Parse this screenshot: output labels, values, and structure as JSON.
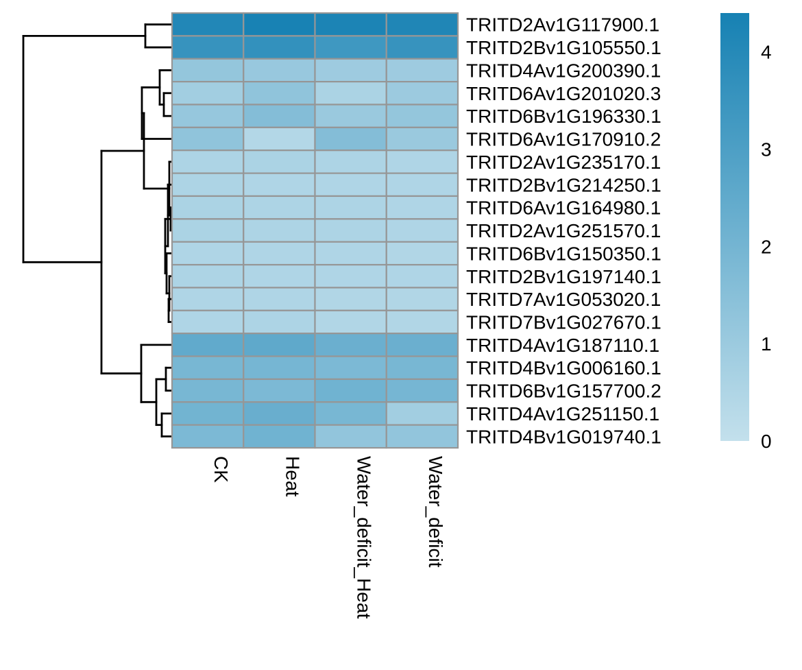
{
  "chart_data": {
    "type": "heatmap",
    "title": "",
    "xlabel": "",
    "ylabel": "",
    "columns": [
      "CK",
      "Heat",
      "Water_deficit_Heat",
      "Water_deficit"
    ],
    "rows": [
      "TRITD2Av1G117900.1",
      "TRITD2Bv1G105550.1",
      "TRITD4Av1G200390.1",
      "TRITD6Av1G201020.3",
      "TRITD6Bv1G196330.1",
      "TRITD6Av1G170910.2",
      "TRITD2Av1G235170.1",
      "TRITD2Bv1G214250.1",
      "TRITD6Av1G164980.1",
      "TRITD2Av1G251570.1",
      "TRITD6Bv1G150350.1",
      "TRITD2Bv1G197140.1",
      "TRITD7Av1G053020.1",
      "TRITD7Bv1G027670.1",
      "TRITD4Av1G187110.1",
      "TRITD4Bv1G006160.1",
      "TRITD6Bv1G157700.2",
      "TRITD4Av1G251150.1",
      "TRITD4Bv1G019740.1"
    ],
    "values": [
      [
        4.1,
        4.35,
        4.25,
        4.15
      ],
      [
        3.55,
        3.65,
        3.35,
        3.55
      ],
      [
        1.2,
        1.1,
        0.95,
        0.95
      ],
      [
        0.85,
        1.3,
        0.6,
        1.0
      ],
      [
        1.15,
        1.6,
        1.05,
        1.2
      ],
      [
        1.3,
        0.4,
        1.6,
        1.05
      ],
      [
        0.55,
        0.6,
        0.55,
        0.5
      ],
      [
        0.55,
        0.5,
        0.5,
        0.5
      ],
      [
        0.6,
        0.55,
        0.55,
        0.5
      ],
      [
        0.6,
        0.55,
        0.55,
        0.5
      ],
      [
        0.5,
        0.5,
        0.5,
        0.45
      ],
      [
        0.55,
        0.5,
        0.5,
        0.5
      ],
      [
        0.5,
        0.5,
        0.45,
        0.45
      ],
      [
        0.5,
        0.55,
        0.45,
        0.45
      ],
      [
        2.5,
        2.55,
        2.25,
        2.25
      ],
      [
        1.9,
        1.95,
        1.8,
        1.9
      ],
      [
        1.9,
        1.8,
        2.1,
        1.95
      ],
      [
        2.05,
        2.3,
        1.9,
        0.85
      ],
      [
        1.8,
        2.1,
        1.25,
        1.25
      ]
    ],
    "colorbar": {
      "min": 0,
      "max": 4.4,
      "ticks": [
        0,
        1,
        2,
        3,
        4
      ],
      "color_low": "#c3e0ec",
      "color_high": "#1681b3"
    },
    "row_dendrogram": true,
    "cell_border_color": "#969696",
    "grid": false
  }
}
